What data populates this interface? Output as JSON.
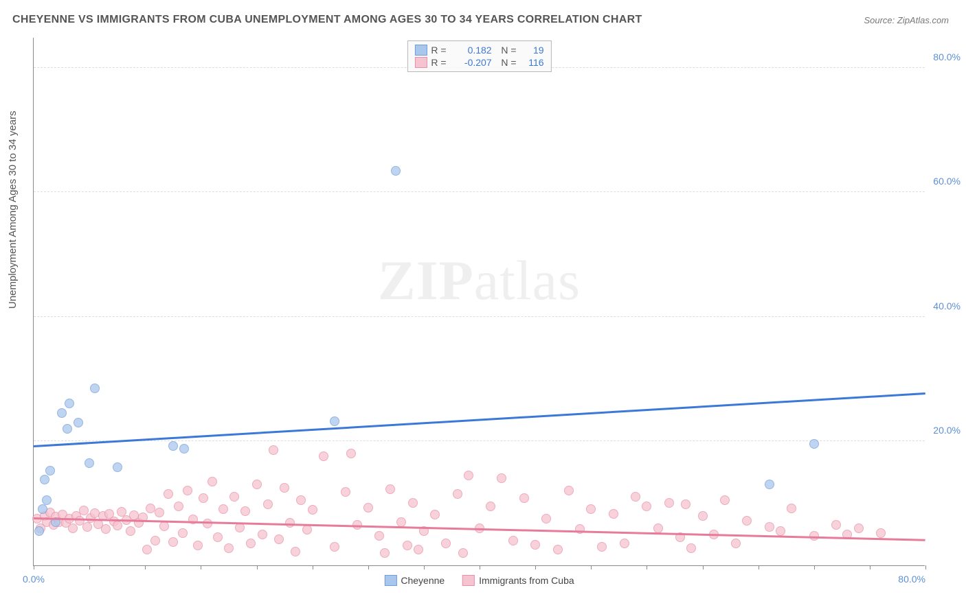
{
  "title": "CHEYENNE VS IMMIGRANTS FROM CUBA UNEMPLOYMENT AMONG AGES 30 TO 34 YEARS CORRELATION CHART",
  "source": "Source: ZipAtlas.com",
  "ylabel": "Unemployment Among Ages 30 to 34 years",
  "watermark_zip": "ZIP",
  "watermark_atlas": "atlas",
  "chart": {
    "type": "scatter",
    "xlim": [
      0,
      80
    ],
    "ylim": [
      0,
      85
    ],
    "ytick_step": 20,
    "yticks": [
      20,
      40,
      60,
      80
    ],
    "ytick_labels": [
      "20.0%",
      "40.0%",
      "60.0%",
      "80.0%"
    ],
    "xtick_minor_step": 5,
    "xticks": [
      0,
      80
    ],
    "xtick_labels": [
      "0.0%",
      "80.0%"
    ],
    "background_color": "#ffffff",
    "grid_color": "#dddddd",
    "axis_color": "#888888",
    "tick_label_color": "#5b8fd6",
    "marker_radius": 7,
    "series": [
      {
        "name": "Cheyenne",
        "color_fill": "#a9c6ec",
        "color_stroke": "#6f9ed9",
        "trend_color": "#3b78d8",
        "R": "0.182",
        "N": "19",
        "trend": {
          "x1": 0,
          "y1": 19.0,
          "x2": 80,
          "y2": 27.5
        },
        "points": [
          [
            0.5,
            5.5
          ],
          [
            0.8,
            9.0
          ],
          [
            1.2,
            10.5
          ],
          [
            1.0,
            13.8
          ],
          [
            1.5,
            15.2
          ],
          [
            2.0,
            7.0
          ],
          [
            2.5,
            24.5
          ],
          [
            3.0,
            22.0
          ],
          [
            3.2,
            26.0
          ],
          [
            4.0,
            23.0
          ],
          [
            5.5,
            28.5
          ],
          [
            5.0,
            16.5
          ],
          [
            7.5,
            15.8
          ],
          [
            12.5,
            19.2
          ],
          [
            13.5,
            18.8
          ],
          [
            27.0,
            23.2
          ],
          [
            32.5,
            63.5
          ],
          [
            66.0,
            13.0
          ],
          [
            70.0,
            19.5
          ]
        ]
      },
      {
        "name": "Immigrants from Cuba",
        "color_fill": "#f5c4d0",
        "color_stroke": "#e98fa8",
        "trend_color": "#e77b9a",
        "R": "-0.207",
        "N": "116",
        "trend": {
          "x1": 0,
          "y1": 7.5,
          "x2": 80,
          "y2": 4.0
        },
        "points": [
          [
            0.3,
            7.5
          ],
          [
            0.6,
            6.0
          ],
          [
            1.0,
            8.0
          ],
          [
            1.2,
            7.0
          ],
          [
            1.5,
            8.5
          ],
          [
            1.8,
            6.5
          ],
          [
            2.0,
            7.8
          ],
          [
            2.3,
            7.0
          ],
          [
            2.6,
            8.2
          ],
          [
            2.9,
            6.8
          ],
          [
            3.2,
            7.5
          ],
          [
            3.5,
            6.0
          ],
          [
            3.8,
            8.0
          ],
          [
            4.1,
            7.2
          ],
          [
            4.5,
            8.8
          ],
          [
            4.8,
            6.2
          ],
          [
            5.1,
            7.6
          ],
          [
            5.5,
            8.4
          ],
          [
            5.8,
            6.6
          ],
          [
            6.2,
            7.9
          ],
          [
            6.5,
            5.8
          ],
          [
            6.8,
            8.3
          ],
          [
            7.2,
            7.1
          ],
          [
            7.5,
            6.4
          ],
          [
            7.9,
            8.6
          ],
          [
            8.3,
            7.3
          ],
          [
            8.7,
            5.5
          ],
          [
            9.0,
            8.1
          ],
          [
            9.4,
            6.9
          ],
          [
            9.8,
            7.7
          ],
          [
            10.2,
            2.5
          ],
          [
            10.5,
            9.2
          ],
          [
            10.9,
            4.0
          ],
          [
            11.3,
            8.5
          ],
          [
            11.7,
            6.3
          ],
          [
            12.1,
            11.5
          ],
          [
            12.5,
            3.8
          ],
          [
            13.0,
            9.5
          ],
          [
            13.4,
            5.2
          ],
          [
            13.8,
            12.0
          ],
          [
            14.3,
            7.4
          ],
          [
            14.7,
            3.2
          ],
          [
            15.2,
            10.8
          ],
          [
            15.6,
            6.7
          ],
          [
            16.0,
            13.5
          ],
          [
            16.5,
            4.5
          ],
          [
            17.0,
            9.0
          ],
          [
            17.5,
            2.8
          ],
          [
            18.0,
            11.0
          ],
          [
            18.5,
            6.1
          ],
          [
            19.0,
            8.7
          ],
          [
            19.5,
            3.5
          ],
          [
            20.0,
            13.0
          ],
          [
            20.5,
            5.0
          ],
          [
            21.0,
            9.8
          ],
          [
            21.5,
            18.5
          ],
          [
            22.0,
            4.2
          ],
          [
            22.5,
            12.5
          ],
          [
            23.0,
            6.8
          ],
          [
            23.5,
            2.2
          ],
          [
            24.0,
            10.5
          ],
          [
            24.5,
            5.7
          ],
          [
            25.0,
            8.9
          ],
          [
            26.0,
            17.5
          ],
          [
            27.0,
            3.0
          ],
          [
            28.0,
            11.8
          ],
          [
            28.5,
            18.0
          ],
          [
            29.0,
            6.5
          ],
          [
            30.0,
            9.3
          ],
          [
            31.0,
            4.8
          ],
          [
            31.5,
            2.0
          ],
          [
            32.0,
            12.2
          ],
          [
            33.0,
            7.0
          ],
          [
            33.5,
            3.2
          ],
          [
            34.0,
            10.0
          ],
          [
            34.5,
            2.5
          ],
          [
            35.0,
            5.5
          ],
          [
            36.0,
            8.2
          ],
          [
            37.0,
            3.5
          ],
          [
            38.0,
            11.5
          ],
          [
            38.5,
            2.0
          ],
          [
            39.0,
            14.5
          ],
          [
            40.0,
            6.0
          ],
          [
            41.0,
            9.5
          ],
          [
            42.0,
            14.0
          ],
          [
            43.0,
            4.0
          ],
          [
            44.0,
            10.8
          ],
          [
            45.0,
            3.3
          ],
          [
            46.0,
            7.5
          ],
          [
            47.0,
            2.5
          ],
          [
            48.0,
            12.0
          ],
          [
            49.0,
            5.8
          ],
          [
            50.0,
            9.0
          ],
          [
            51.0,
            3.0
          ],
          [
            52.0,
            8.3
          ],
          [
            53.0,
            3.5
          ],
          [
            54.0,
            11.0
          ],
          [
            55.0,
            9.5
          ],
          [
            56.0,
            6.0
          ],
          [
            57.0,
            10.0
          ],
          [
            58.0,
            4.5
          ],
          [
            58.5,
            9.8
          ],
          [
            59.0,
            2.8
          ],
          [
            60.0,
            8.0
          ],
          [
            61.0,
            5.0
          ],
          [
            62.0,
            10.5
          ],
          [
            63.0,
            3.5
          ],
          [
            64.0,
            7.2
          ],
          [
            66.0,
            6.2
          ],
          [
            67.0,
            5.5
          ],
          [
            68.0,
            9.2
          ],
          [
            70.0,
            4.8
          ],
          [
            72.0,
            6.5
          ],
          [
            73.0,
            5.0
          ],
          [
            74.0,
            6.0
          ],
          [
            76.0,
            5.2
          ]
        ]
      }
    ]
  },
  "legend_bottom": [
    {
      "label": "Cheyenne",
      "fill": "#a9c6ec",
      "stroke": "#6f9ed9"
    },
    {
      "label": "Immigrants from Cuba",
      "fill": "#f5c4d0",
      "stroke": "#e98fa8"
    }
  ]
}
